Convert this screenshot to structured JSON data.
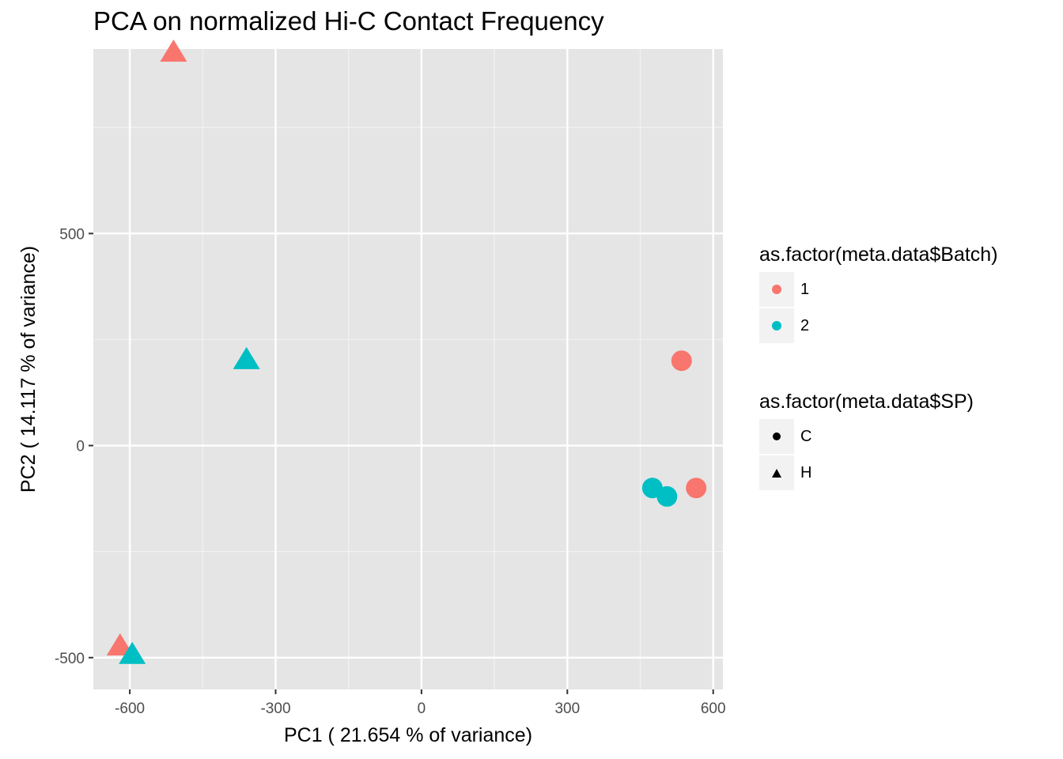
{
  "chart_data": {
    "type": "scatter",
    "title": "PCA on normalized Hi-C Contact Frequency",
    "xlabel": "PC1 ( 21.654 % of variance)",
    "ylabel": "PC2 ( 14.117 % of variance)",
    "xlim": [
      -675,
      620
    ],
    "ylim": [
      -575,
      935
    ],
    "x_ticks": [
      -600,
      -300,
      0,
      300,
      600
    ],
    "x_tick_labels": [
      "-600",
      "-300",
      "0",
      "300",
      "600"
    ],
    "y_ticks": [
      -500,
      0,
      500
    ],
    "y_tick_labels": [
      "-500",
      "0",
      "500"
    ],
    "grid": true,
    "legend_placement": "right",
    "colors": {
      "1": "#F8766D",
      "2": "#00BFC4"
    },
    "points": [
      {
        "x": -510,
        "y": 925,
        "batch": "1",
        "sp": "H"
      },
      {
        "x": -360,
        "y": 200,
        "batch": "2",
        "sp": "H"
      },
      {
        "x": -620,
        "y": -475,
        "batch": "1",
        "sp": "H"
      },
      {
        "x": -595,
        "y": -495,
        "batch": "2",
        "sp": "H"
      },
      {
        "x": 535,
        "y": 200,
        "batch": "1",
        "sp": "C"
      },
      {
        "x": 565,
        "y": -100,
        "batch": "1",
        "sp": "C"
      },
      {
        "x": 475,
        "y": -100,
        "batch": "2",
        "sp": "C"
      },
      {
        "x": 505,
        "y": -120,
        "batch": "2",
        "sp": "C"
      }
    ],
    "legends": [
      {
        "title": "as.factor(meta.data$Batch)",
        "items": [
          {
            "label": "1",
            "color": "#F8766D",
            "shape": "circle"
          },
          {
            "label": "2",
            "color": "#00BFC4",
            "shape": "circle"
          }
        ]
      },
      {
        "title": "as.factor(meta.data$SP)",
        "items": [
          {
            "label": "C",
            "color": "#000000",
            "shape": "circle"
          },
          {
            "label": "H",
            "color": "#000000",
            "shape": "triangle"
          }
        ]
      }
    ]
  }
}
